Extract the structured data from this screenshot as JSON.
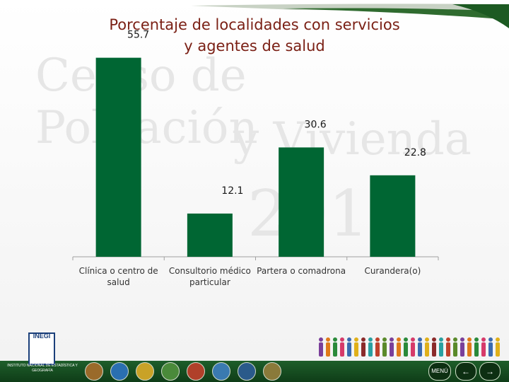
{
  "title_line1": "Porcentaje de localidades con servicios",
  "title_line2": "y agentes de salud",
  "watermark": {
    "line1": "Censo de Población",
    "line2": "y Vivienda",
    "line3": "2010"
  },
  "chart_data": {
    "type": "bar",
    "categories": [
      [
        "Clínica o centro de",
        "salud"
      ],
      [
        "Consultorio médico",
        "particular"
      ],
      [
        "Partera o comadrona"
      ],
      [
        "Curandera(o)"
      ]
    ],
    "values": [
      55.7,
      12.1,
      30.6,
      22.8
    ],
    "value_labels": [
      "55.7",
      "12.1",
      "30.6",
      "22.8"
    ],
    "ylim": [
      0,
      58
    ],
    "bar_color": "#006633",
    "grid": false
  },
  "footer": {
    "logo_text": "INEGI",
    "institution": "INSTITUTO NACIONAL DE ESTADÍSTICA Y GEOGRAFÍA",
    "menu_label": "MENÚ",
    "prev_symbol": "←",
    "next_symbol": "→",
    "band_color": "#1e5e2a"
  }
}
